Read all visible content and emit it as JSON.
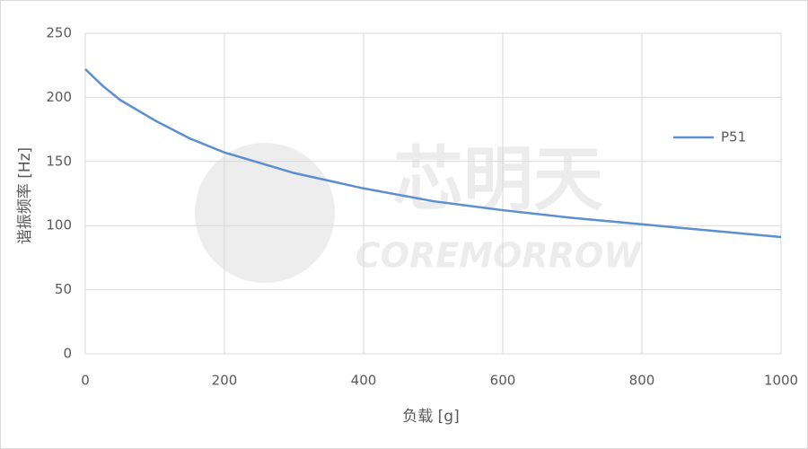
{
  "chart_data": {
    "type": "line",
    "x_label": "负载 [g]",
    "y_label": "谐振频率 [Hz]",
    "watermark": "芯明天",
    "watermark_sub": "COREMORROW",
    "x": [
      0,
      25,
      50,
      100,
      150,
      200,
      300,
      400,
      500,
      600,
      700,
      800,
      900,
      1000
    ],
    "series": [
      {
        "name": "P51",
        "color": "#5b8fd0",
        "values": [
          222,
          209,
          198,
          182,
          168,
          157,
          141,
          129,
          119,
          112,
          106,
          101,
          96,
          91
        ]
      }
    ],
    "xlim": [
      0,
      1000
    ],
    "xticks": [
      0,
      200,
      400,
      600,
      800,
      1000
    ],
    "ylim": [
      0,
      250
    ],
    "yticks": [
      0,
      50,
      100,
      150,
      200,
      250
    ],
    "grid": true,
    "legend": "right"
  }
}
